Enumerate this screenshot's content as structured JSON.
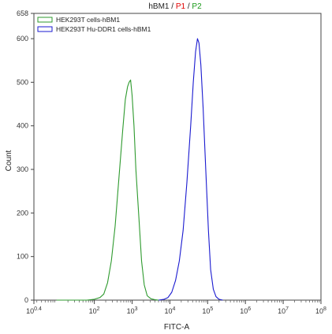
{
  "title_parts": [
    {
      "text": "hBM1",
      "color": "#222222"
    },
    {
      "text": " / ",
      "color": "#222222"
    },
    {
      "text": "P1",
      "color": "#e00000"
    },
    {
      "text": " / ",
      "color": "#222222"
    },
    {
      "text": "P2",
      "color": "#1a9a1a"
    }
  ],
  "chart_data": {
    "type": "line",
    "xlabel": "FITC-A",
    "ylabel": "Count",
    "xscale": "log",
    "xlim_exp": [
      0.4,
      8
    ],
    "ylim": [
      0,
      658
    ],
    "grid": false,
    "legend_placement": "top-left",
    "x_ticks": [
      {
        "base": "10",
        "exp": "0.4",
        "value": 0.4
      },
      {
        "base": "10",
        "exp": "2",
        "value": 2
      },
      {
        "base": "10",
        "exp": "3",
        "value": 3
      },
      {
        "base": "10",
        "exp": "4",
        "value": 4
      },
      {
        "base": "10",
        "exp": "5",
        "value": 5
      },
      {
        "base": "10",
        "exp": "6",
        "value": 6
      },
      {
        "base": "10",
        "exp": "7",
        "value": 7
      },
      {
        "base": "10",
        "exp": "8",
        "value": 8
      }
    ],
    "y_ticks": [
      0,
      100,
      200,
      300,
      400,
      500,
      600,
      658
    ],
    "series": [
      {
        "name": "HEK293T cells-hBM1",
        "color": "#2e9a2e",
        "points": [
          [
            1.0,
            0
          ],
          [
            1.8,
            0
          ],
          [
            2.0,
            2
          ],
          [
            2.15,
            6
          ],
          [
            2.25,
            14
          ],
          [
            2.35,
            40
          ],
          [
            2.45,
            90
          ],
          [
            2.55,
            170
          ],
          [
            2.65,
            280
          ],
          [
            2.75,
            390
          ],
          [
            2.82,
            460
          ],
          [
            2.88,
            490
          ],
          [
            2.92,
            500
          ],
          [
            2.96,
            505
          ],
          [
            3.0,
            470
          ],
          [
            3.05,
            400
          ],
          [
            3.1,
            300
          ],
          [
            3.18,
            190
          ],
          [
            3.25,
            90
          ],
          [
            3.32,
            35
          ],
          [
            3.4,
            10
          ],
          [
            3.5,
            3
          ],
          [
            3.6,
            1
          ],
          [
            3.7,
            0
          ]
        ]
      },
      {
        "name": "HEK293T Hu-DDR1 cells-hBM1",
        "color": "#1a1ad0",
        "points": [
          [
            3.7,
            0
          ],
          [
            3.85,
            2
          ],
          [
            3.95,
            6
          ],
          [
            4.05,
            18
          ],
          [
            4.15,
            45
          ],
          [
            4.25,
            90
          ],
          [
            4.35,
            160
          ],
          [
            4.45,
            270
          ],
          [
            4.55,
            400
          ],
          [
            4.62,
            500
          ],
          [
            4.68,
            570
          ],
          [
            4.73,
            600
          ],
          [
            4.77,
            590
          ],
          [
            4.82,
            540
          ],
          [
            4.88,
            440
          ],
          [
            4.95,
            300
          ],
          [
            5.02,
            160
          ],
          [
            5.08,
            70
          ],
          [
            5.15,
            25
          ],
          [
            5.22,
            8
          ],
          [
            5.3,
            2
          ],
          [
            5.4,
            0
          ]
        ]
      }
    ]
  }
}
